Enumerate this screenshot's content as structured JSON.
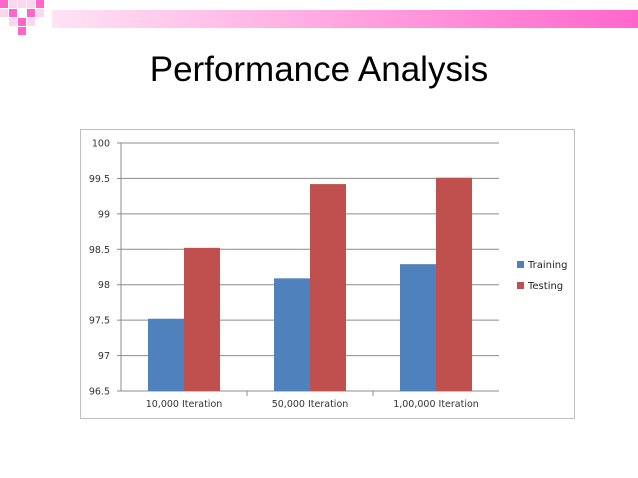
{
  "slide": {
    "title": "Performance Analysis",
    "accent_color": "#ff66cc",
    "accent_light": "#ffd6f0"
  },
  "chart_data": {
    "type": "bar",
    "categories": [
      "10,000 Iteration",
      "50,000 Iteration",
      "1,00,000 Iteration"
    ],
    "series": [
      {
        "name": "Training",
        "color": "#4f81bd",
        "values": [
          97.52,
          98.09,
          98.29
        ]
      },
      {
        "name": "Testing",
        "color": "#c0504d",
        "values": [
          98.52,
          99.42,
          99.51
        ]
      }
    ],
    "ylim": [
      96.5,
      100
    ],
    "yticks": [
      "96.5",
      "97",
      "97.5",
      "98",
      "98.5",
      "99",
      "99.5",
      "100"
    ],
    "grid": true,
    "legend_position": "right"
  }
}
